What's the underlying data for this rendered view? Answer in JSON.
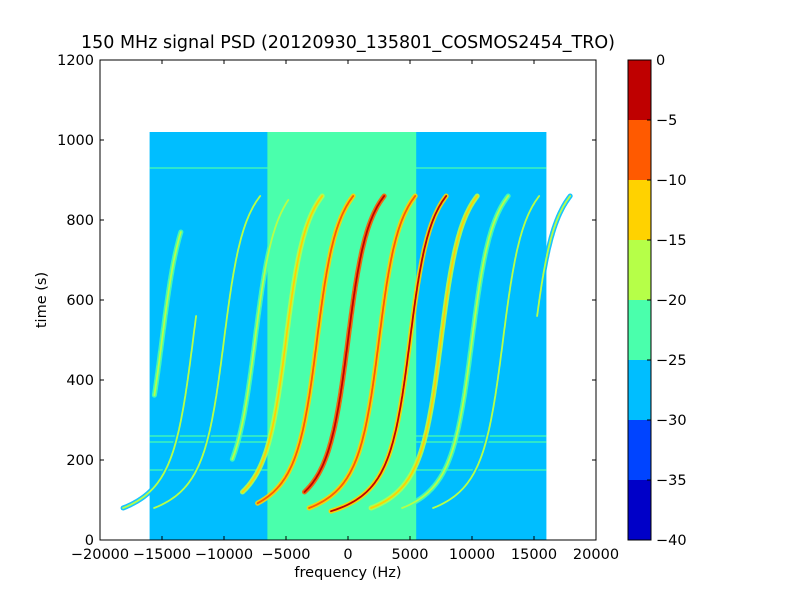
{
  "chart_data": {
    "type": "heatmap",
    "title": "150 MHz signal PSD (20120930_135801_COSMOS2454_TRO)",
    "xlabel": "frequency (Hz)",
    "ylabel": "time (s)",
    "xlim": [
      -20000,
      20000
    ],
    "ylim": [
      0,
      1200
    ],
    "x_ticks": [
      {
        "value": -20000,
        "label": "−20000"
      },
      {
        "value": -15000,
        "label": "−15000"
      },
      {
        "value": -10000,
        "label": "−10000"
      },
      {
        "value": -5000,
        "label": "−5000"
      },
      {
        "value": 0,
        "label": "0"
      },
      {
        "value": 5000,
        "label": "5000"
      },
      {
        "value": 10000,
        "label": "10000"
      },
      {
        "value": 15000,
        "label": "15000"
      },
      {
        "value": 20000,
        "label": "20000"
      }
    ],
    "y_ticks": [
      {
        "value": 0,
        "label": "0"
      },
      {
        "value": 200,
        "label": "200"
      },
      {
        "value": 400,
        "label": "400"
      },
      {
        "value": 600,
        "label": "600"
      },
      {
        "value": 800,
        "label": "800"
      },
      {
        "value": 1000,
        "label": "1000"
      },
      {
        "value": 1200,
        "label": "1200"
      }
    ],
    "data_extent": {
      "x": [
        -16000,
        16000
      ],
      "y": [
        0,
        1020
      ]
    },
    "background_level_outer": -27.5,
    "background_level_center": -22.5,
    "center_band_x": [
      -6500,
      5500
    ],
    "horizontal_line_times": [
      175,
      245,
      260,
      930
    ],
    "traces": [
      {
        "x0": 0,
        "peak": -2,
        "t_hi": 860,
        "t_lo": 120
      },
      {
        "x0": -2500,
        "peak": -7,
        "t_hi": 860,
        "t_lo": 90
      },
      {
        "x0": 2500,
        "peak": -7,
        "t_hi": 860,
        "t_lo": 80
      },
      {
        "x0": -5000,
        "peak": -12,
        "t_hi": 860,
        "t_lo": 120
      },
      {
        "x0": 5000,
        "peak": -4,
        "t_hi": 860,
        "t_lo": 70
      },
      {
        "x0": -7500,
        "peak": -17,
        "t_hi": 850,
        "t_lo": 200
      },
      {
        "x0": 7500,
        "peak": -12,
        "t_hi": 860,
        "t_lo": 80
      },
      {
        "x0": -10000,
        "peak": -18,
        "t_hi": 860,
        "t_lo": 80
      },
      {
        "x0": 10000,
        "peak": -17,
        "t_hi": 860,
        "t_lo": 80
      },
      {
        "x0": -12500,
        "peak": -20,
        "t_hi": 560,
        "t_lo": 80
      },
      {
        "x0": 12500,
        "peak": -19,
        "t_hi": 860,
        "t_lo": 80
      },
      {
        "x0": -15000,
        "peak": -17,
        "t_hi": 770,
        "t_lo": 360
      },
      {
        "x0": 15000,
        "peak": -18,
        "t_hi": 860,
        "t_lo": 560
      }
    ],
    "colorbar": {
      "range": [
        -40,
        0
      ],
      "ticks": [
        {
          "value": 0,
          "label": "0"
        },
        {
          "value": -5,
          "label": "−5"
        },
        {
          "value": -10,
          "label": "−10"
        },
        {
          "value": -15,
          "label": "−15"
        },
        {
          "value": -20,
          "label": "−20"
        },
        {
          "value": -25,
          "label": "−25"
        },
        {
          "value": -30,
          "label": "−30"
        },
        {
          "value": -35,
          "label": "−35"
        },
        {
          "value": -40,
          "label": "−40"
        }
      ],
      "bins": [
        {
          "from": -5,
          "to": 0,
          "color": "#bf0000"
        },
        {
          "from": -10,
          "to": -5,
          "color": "#ff5a00"
        },
        {
          "from": -15,
          "to": -10,
          "color": "#ffd200"
        },
        {
          "from": -20,
          "to": -15,
          "color": "#b6ff48"
        },
        {
          "from": -25,
          "to": -20,
          "color": "#4affac"
        },
        {
          "from": -30,
          "to": -25,
          "color": "#00beff"
        },
        {
          "from": -35,
          "to": -30,
          "color": "#0044ff"
        },
        {
          "from": -40,
          "to": -35,
          "color": "#0000c8"
        }
      ]
    }
  }
}
